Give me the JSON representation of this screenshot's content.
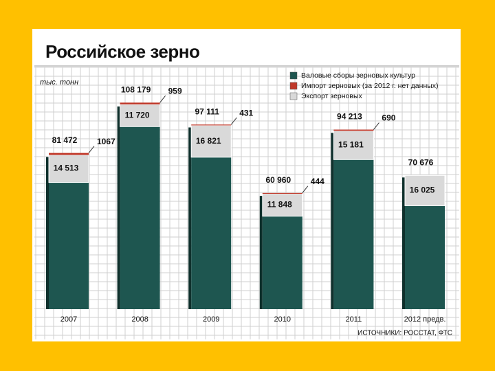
{
  "chart_data": {
    "type": "bar",
    "title": "Российское зерно",
    "unit": "тыс. тонн",
    "source": "ИСТОЧНИКИ: РОССТАТ, ФТС",
    "categories": [
      "2007",
      "2008",
      "2009",
      "2010",
      "2011",
      "2012 предв."
    ],
    "series": [
      {
        "name": "Валовые сборы зерновых культур",
        "color": "#1e5650",
        "values": [
          81472,
          108179,
          97111,
          60960,
          94213,
          70676
        ],
        "value_labels": [
          "81 472",
          "108 179",
          "97 111",
          "60 960",
          "94 213",
          "70 676"
        ]
      },
      {
        "name": "Импорт зерновых (за 2012 г. нет данных)",
        "color": "#c0392b",
        "values": [
          1067,
          959,
          431,
          444,
          690,
          null
        ]
      },
      {
        "name": "Экспорт зерновых",
        "color": "#d9d9d9",
        "values": [
          14513,
          11720,
          16821,
          11848,
          15181,
          16025
        ],
        "value_labels": [
          "14 513",
          "11 720",
          "16 821",
          "11 848",
          "15 181",
          "16 025"
        ]
      }
    ],
    "grid": true
  }
}
